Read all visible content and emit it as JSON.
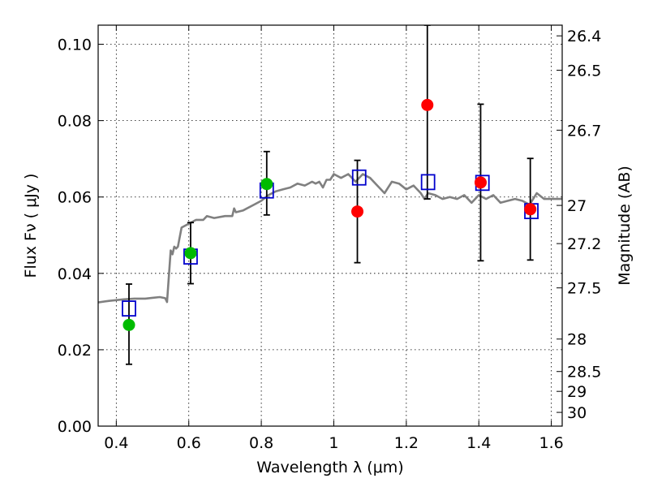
{
  "chart_data": {
    "type": "scatter",
    "xlabel": "Wavelength  λ (μm)",
    "ylabel": "Flux  Fν  ( μJy )",
    "ylabel_right": "Magnitude (AB)",
    "xlim": [
      0.35,
      1.63
    ],
    "ylim": [
      0.0,
      0.105
    ],
    "grid": true,
    "x_ticks": [
      0.4,
      0.6,
      0.8,
      1.0,
      1.2,
      1.4,
      1.6
    ],
    "x_tick_labels": [
      "0.4",
      "0.6",
      "0.8",
      "1",
      "1.2",
      "1.4",
      "1.6"
    ],
    "y_ticks": [
      0.0,
      0.02,
      0.04,
      0.06,
      0.08,
      0.1
    ],
    "y_tick_labels": [
      "0.00",
      "0.02",
      "0.04",
      "0.06",
      "0.08",
      "0.10"
    ],
    "right_ticks": [
      {
        "flux": 0.1022,
        "label": "26.4"
      },
      {
        "flux": 0.0932,
        "label": "26.5"
      },
      {
        "flux": 0.0775,
        "label": "26.7"
      },
      {
        "flux": 0.0578,
        "label": "27"
      },
      {
        "flux": 0.0478,
        "label": "27.2"
      },
      {
        "flux": 0.0362,
        "label": "27.5"
      },
      {
        "flux": 0.0228,
        "label": "28"
      },
      {
        "flux": 0.0143,
        "label": "28.5"
      },
      {
        "flux": 0.0091,
        "label": "29"
      },
      {
        "flux": 0.0036,
        "label": "30"
      }
    ],
    "series": [
      {
        "kind": "line",
        "color": "#808080",
        "x": [
          0.35,
          0.38,
          0.42,
          0.45,
          0.48,
          0.5,
          0.52,
          0.535,
          0.54,
          0.55,
          0.555,
          0.56,
          0.565,
          0.57,
          0.58,
          0.6,
          0.62,
          0.64,
          0.65,
          0.67,
          0.7,
          0.72,
          0.725,
          0.73,
          0.75,
          0.78,
          0.8,
          0.82,
          0.84,
          0.86,
          0.88,
          0.9,
          0.92,
          0.94,
          0.95,
          0.96,
          0.97,
          0.98,
          0.99,
          1.0,
          1.02,
          1.04,
          1.06,
          1.08,
          1.1,
          1.12,
          1.14,
          1.16,
          1.18,
          1.2,
          1.22,
          1.24,
          1.25,
          1.26,
          1.28,
          1.3,
          1.32,
          1.34,
          1.36,
          1.38,
          1.4,
          1.42,
          1.44,
          1.46,
          1.48,
          1.5,
          1.52,
          1.54,
          1.56,
          1.58,
          1.6,
          1.63
        ],
        "y": [
          0.0324,
          0.0328,
          0.0332,
          0.0334,
          0.0334,
          0.0336,
          0.0338,
          0.0335,
          0.0325,
          0.046,
          0.045,
          0.047,
          0.0465,
          0.047,
          0.052,
          0.053,
          0.054,
          0.054,
          0.055,
          0.0545,
          0.055,
          0.055,
          0.057,
          0.056,
          0.0565,
          0.058,
          0.059,
          0.0605,
          0.0615,
          0.062,
          0.0625,
          0.0635,
          0.063,
          0.064,
          0.0635,
          0.064,
          0.0625,
          0.0645,
          0.0645,
          0.066,
          0.065,
          0.066,
          0.064,
          0.066,
          0.065,
          0.063,
          0.061,
          0.064,
          0.0635,
          0.062,
          0.063,
          0.061,
          0.0595,
          0.061,
          0.0605,
          0.0595,
          0.06,
          0.0595,
          0.0605,
          0.0585,
          0.0605,
          0.0595,
          0.0605,
          0.0585,
          0.059,
          0.0595,
          0.059,
          0.058,
          0.061,
          0.0595,
          0.0595,
          0.0595
        ]
      },
      {
        "kind": "open-squares",
        "color": "#0000cc",
        "x": [
          0.435,
          0.605,
          0.815,
          1.07,
          1.26,
          1.41,
          1.545
        ],
        "y": [
          0.0308,
          0.0444,
          0.0617,
          0.0651,
          0.0639,
          0.0637,
          0.0563
        ]
      },
      {
        "kind": "filled-circles",
        "color": "#00bb00",
        "x": [
          0.435,
          0.605,
          0.815
        ],
        "y": [
          0.0265,
          0.0453,
          0.0634
        ]
      },
      {
        "kind": "filled-circles",
        "color": "#ff0000",
        "x": [
          1.065,
          1.258,
          1.405,
          1.542
        ],
        "y": [
          0.0562,
          0.0841,
          0.0638,
          0.0568
        ]
      }
    ],
    "error_bars": {
      "color": "#000000",
      "x": [
        0.435,
        0.605,
        0.815,
        1.065,
        1.258,
        1.405,
        1.542
      ],
      "low": [
        0.0162,
        0.0373,
        0.0553,
        0.0428,
        0.0595,
        0.0433,
        0.0435
      ],
      "high": [
        0.0372,
        0.0533,
        0.0719,
        0.0696,
        0.105,
        0.0843,
        0.0701
      ]
    }
  }
}
